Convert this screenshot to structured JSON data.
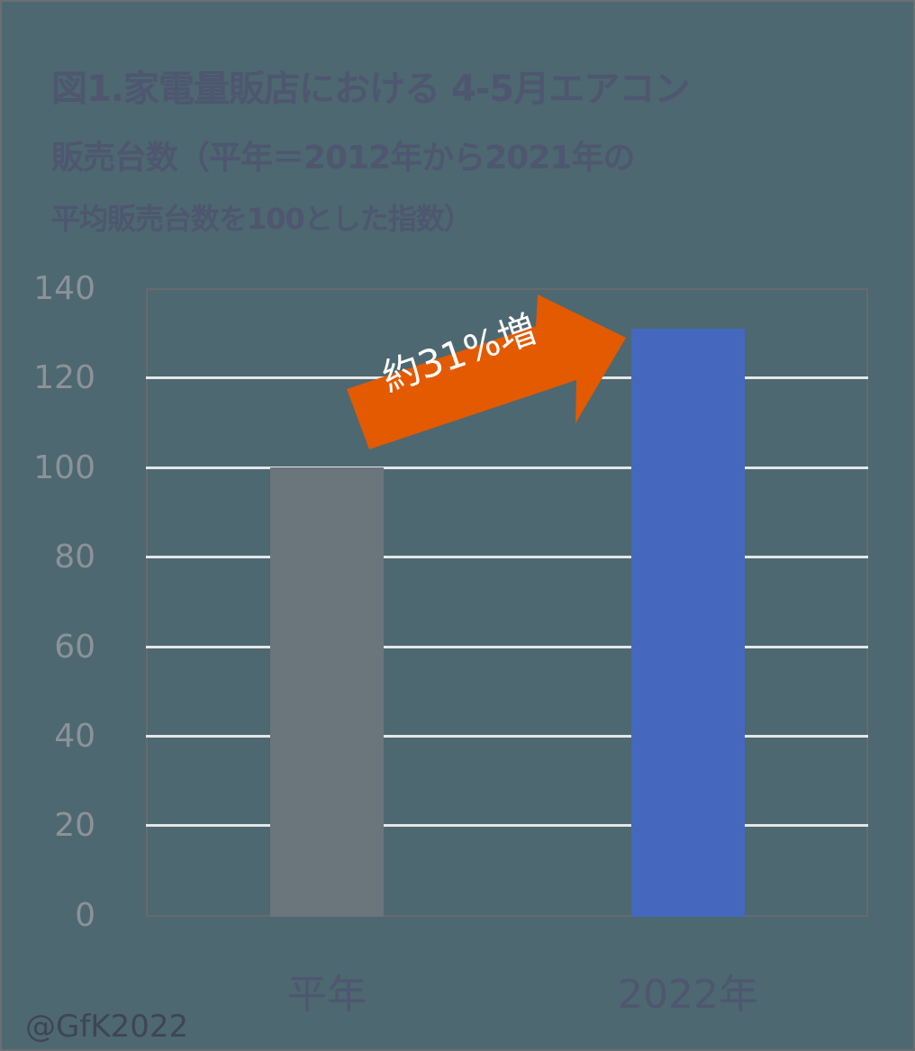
{
  "title": {
    "line1": "図1.家電量販店における 4-5月エアコン",
    "line2": "販売台数（平年＝2012年から2021年の",
    "line3": "平均販売台数を100とした指数）"
  },
  "chart_data": {
    "type": "bar",
    "title": "図1.家電量販店における 4-5月エアコン販売台数（平年＝2012年から2021年の平均販売台数を100とした指数）",
    "categories": [
      "平年",
      "2022年"
    ],
    "values": [
      100,
      131
    ],
    "colors": [
      "#6b757c",
      "#4568be"
    ],
    "xlabel": "",
    "ylabel": "",
    "ylim": [
      0,
      140
    ],
    "yticks": [
      0,
      20,
      40,
      60,
      80,
      100,
      120,
      140
    ],
    "grid": true,
    "legend": null,
    "annotations": [
      {
        "text": "約31%増",
        "type": "arrow",
        "color": "#e35a00"
      }
    ]
  },
  "axis": {
    "yticks": [
      "140",
      "120",
      "100",
      "80",
      "60",
      "40",
      "20",
      "0"
    ],
    "xlabels": [
      "平年",
      "2022年"
    ]
  },
  "annotation": {
    "label": "約31%増",
    "color": "#e35a00"
  },
  "credit": "@GfK2022"
}
